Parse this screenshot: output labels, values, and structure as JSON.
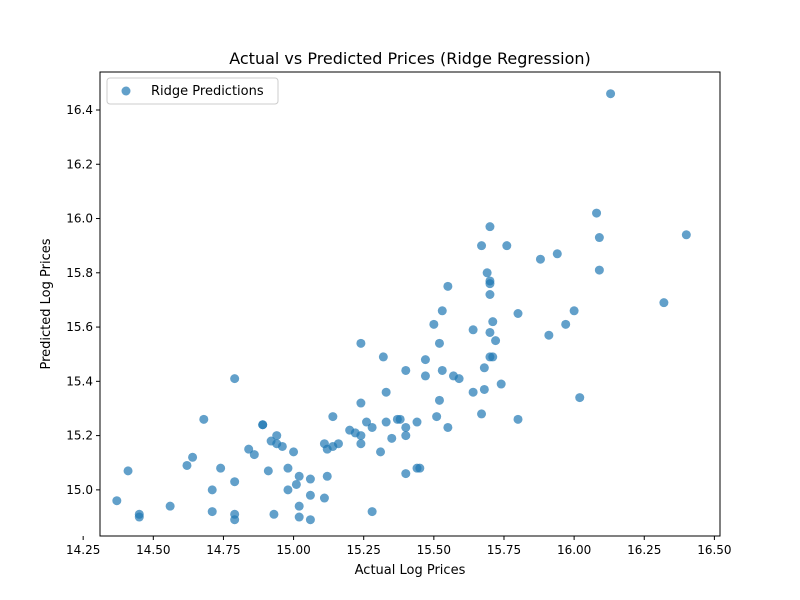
{
  "chart_data": {
    "type": "scatter",
    "title": "Actual vs Predicted Prices (Ridge Regression)",
    "xlabel": "Actual Log Prices",
    "ylabel": "Predicted Log Prices",
    "xlim": [
      14.31,
      16.52
    ],
    "ylim": [
      14.83,
      16.54
    ],
    "xticks": [
      "14.25",
      "14.50",
      "14.75",
      "15.00",
      "15.25",
      "15.50",
      "15.75",
      "16.00",
      "16.25",
      "16.50"
    ],
    "yticks": [
      "15.0",
      "15.2",
      "15.4",
      "15.6",
      "15.8",
      "16.0",
      "16.2",
      "16.4"
    ],
    "grid": false,
    "legend_position": "top-left",
    "series": [
      {
        "name": "Ridge Predictions",
        "color": "#1f77b4",
        "points": [
          [
            14.37,
            14.96
          ],
          [
            14.41,
            15.07
          ],
          [
            14.45,
            14.91
          ],
          [
            14.45,
            14.9
          ],
          [
            14.56,
            14.94
          ],
          [
            14.62,
            15.09
          ],
          [
            14.64,
            15.12
          ],
          [
            14.68,
            15.26
          ],
          [
            14.71,
            15.0
          ],
          [
            14.71,
            14.92
          ],
          [
            14.74,
            15.08
          ],
          [
            14.79,
            15.41
          ],
          [
            14.79,
            15.03
          ],
          [
            14.79,
            14.91
          ],
          [
            14.79,
            14.89
          ],
          [
            14.84,
            15.15
          ],
          [
            14.86,
            15.13
          ],
          [
            14.89,
            15.24
          ],
          [
            14.89,
            15.24
          ],
          [
            14.91,
            15.07
          ],
          [
            14.92,
            15.18
          ],
          [
            14.93,
            14.91
          ],
          [
            14.94,
            15.2
          ],
          [
            14.94,
            15.17
          ],
          [
            14.96,
            15.16
          ],
          [
            14.98,
            15.08
          ],
          [
            14.98,
            15.0
          ],
          [
            15.0,
            15.14
          ],
          [
            15.01,
            15.02
          ],
          [
            15.02,
            15.05
          ],
          [
            15.02,
            14.94
          ],
          [
            15.02,
            14.9
          ],
          [
            15.06,
            15.04
          ],
          [
            15.06,
            14.98
          ],
          [
            15.06,
            14.89
          ],
          [
            15.11,
            15.17
          ],
          [
            15.11,
            14.97
          ],
          [
            15.12,
            15.15
          ],
          [
            15.12,
            15.05
          ],
          [
            15.14,
            15.27
          ],
          [
            15.14,
            15.16
          ],
          [
            15.16,
            15.17
          ],
          [
            15.2,
            15.22
          ],
          [
            15.22,
            15.21
          ],
          [
            15.24,
            15.54
          ],
          [
            15.24,
            15.32
          ],
          [
            15.24,
            15.2
          ],
          [
            15.24,
            15.17
          ],
          [
            15.26,
            15.25
          ],
          [
            15.28,
            15.23
          ],
          [
            15.28,
            14.92
          ],
          [
            15.31,
            15.14
          ],
          [
            15.32,
            15.49
          ],
          [
            15.33,
            15.36
          ],
          [
            15.33,
            15.25
          ],
          [
            15.35,
            15.19
          ],
          [
            15.37,
            15.26
          ],
          [
            15.38,
            15.26
          ],
          [
            15.4,
            15.44
          ],
          [
            15.4,
            15.23
          ],
          [
            15.4,
            15.2
          ],
          [
            15.4,
            15.06
          ],
          [
            15.44,
            15.25
          ],
          [
            15.44,
            15.08
          ],
          [
            15.45,
            15.08
          ],
          [
            15.47,
            15.48
          ],
          [
            15.47,
            15.42
          ],
          [
            15.5,
            15.61
          ],
          [
            15.51,
            15.27
          ],
          [
            15.52,
            15.54
          ],
          [
            15.52,
            15.33
          ],
          [
            15.53,
            15.66
          ],
          [
            15.53,
            15.44
          ],
          [
            15.55,
            15.75
          ],
          [
            15.55,
            15.23
          ],
          [
            15.57,
            15.42
          ],
          [
            15.59,
            15.41
          ],
          [
            15.64,
            15.59
          ],
          [
            15.64,
            15.36
          ],
          [
            15.67,
            15.9
          ],
          [
            15.67,
            15.28
          ],
          [
            15.68,
            15.45
          ],
          [
            15.68,
            15.37
          ],
          [
            15.69,
            15.8
          ],
          [
            15.7,
            15.97
          ],
          [
            15.7,
            15.77
          ],
          [
            15.7,
            15.76
          ],
          [
            15.7,
            15.72
          ],
          [
            15.7,
            15.58
          ],
          [
            15.7,
            15.49
          ],
          [
            15.71,
            15.49
          ],
          [
            15.71,
            15.62
          ],
          [
            15.72,
            15.55
          ],
          [
            15.74,
            15.39
          ],
          [
            15.76,
            15.9
          ],
          [
            15.8,
            15.65
          ],
          [
            15.8,
            15.26
          ],
          [
            15.88,
            15.85
          ],
          [
            15.91,
            15.57
          ],
          [
            15.94,
            15.87
          ],
          [
            15.97,
            15.61
          ],
          [
            16.0,
            15.66
          ],
          [
            16.02,
            15.34
          ],
          [
            16.08,
            16.02
          ],
          [
            16.09,
            15.93
          ],
          [
            16.09,
            15.81
          ],
          [
            16.13,
            16.46
          ],
          [
            16.32,
            15.69
          ],
          [
            16.4,
            15.94
          ]
        ]
      }
    ]
  }
}
